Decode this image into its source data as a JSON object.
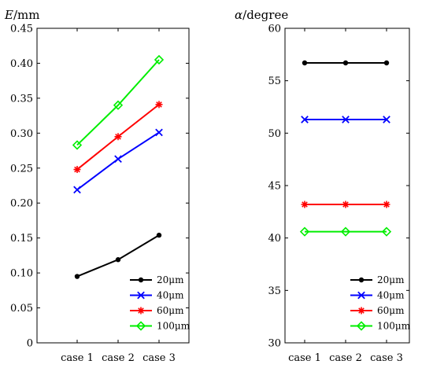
{
  "chart_data": [
    {
      "type": "line",
      "ylabel_symbol": "E",
      "ylabel_unit": "/mm",
      "categories": [
        "case 1",
        "case 2",
        "case 3"
      ],
      "ylim": [
        0,
        0.45
      ],
      "yticks": [
        "0",
        "0.05",
        "0.10",
        "0.15",
        "0.20",
        "0.25",
        "0.30",
        "0.35",
        "0.40",
        "0.45"
      ],
      "ytick_values": [
        0,
        0.05,
        0.1,
        0.15,
        0.2,
        0.25,
        0.3,
        0.35,
        0.4,
        0.45
      ],
      "legend_position": "bottom-right",
      "series": [
        {
          "name": "20μm",
          "color": "#000000",
          "marker": "dot",
          "values": [
            0.095,
            0.119,
            0.154
          ]
        },
        {
          "name": "40μm",
          "color": "#0000ff",
          "marker": "x",
          "values": [
            0.219,
            0.263,
            0.301
          ]
        },
        {
          "name": "60μm",
          "color": "#ff0000",
          "marker": "star",
          "values": [
            0.248,
            0.295,
            0.341
          ]
        },
        {
          "name": "100μm",
          "color": "#00ee00",
          "marker": "diamond",
          "values": [
            0.283,
            0.34,
            0.405
          ]
        }
      ]
    },
    {
      "type": "line",
      "ylabel_symbol": "α",
      "ylabel_unit": "/degree",
      "categories": [
        "case 1",
        "case 2",
        "case 3"
      ],
      "ylim": [
        30,
        60
      ],
      "yticks": [
        "30",
        "35",
        "40",
        "45",
        "50",
        "55",
        "60"
      ],
      "ytick_values": [
        30,
        35,
        40,
        45,
        50,
        55,
        60
      ],
      "legend_position": "bottom-right",
      "series": [
        {
          "name": "20μm",
          "color": "#000000",
          "marker": "dot",
          "values": [
            56.7,
            56.7,
            56.7
          ]
        },
        {
          "name": "40μm",
          "color": "#0000ff",
          "marker": "x",
          "values": [
            51.3,
            51.3,
            51.3
          ]
        },
        {
          "name": "60μm",
          "color": "#ff0000",
          "marker": "star",
          "values": [
            43.2,
            43.2,
            43.2
          ]
        },
        {
          "name": "100μm",
          "color": "#00ee00",
          "marker": "diamond",
          "values": [
            40.6,
            40.6,
            40.6
          ]
        }
      ]
    }
  ]
}
